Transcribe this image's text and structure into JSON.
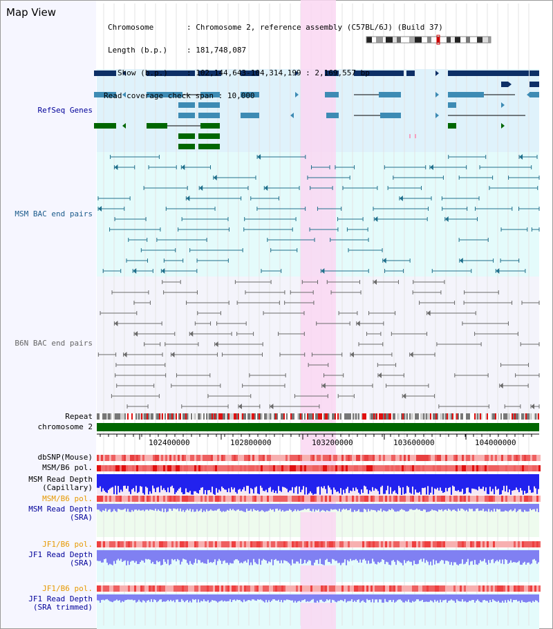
{
  "header": {
    "title": "Map View",
    "chromosome_key": "Chromosome",
    "chromosome_value": ": Chromosome 2, reference assembly (C57BL/6J) (Build 37)",
    "length_key": "Length (b.p.)",
    "length_value": ": 181,748,087",
    "show_key": "Show (b.p.)",
    "show_value": ": 102,144,643-104,314,199 : 2,169,557 bp",
    "span_key": "Read coverage check span",
    "span_value": ": 10,000"
  },
  "tracks": {
    "refseq": "RefSeq Genes",
    "msm_bac": "MSM BAC end pairs",
    "b6n_bac": "B6N BAC end pairs",
    "repeat": "Repeat",
    "chromosome": "chromosome 2",
    "dbsnp": "dbSNP(Mouse)",
    "msm_b6_pol": "MSM/B6 pol.",
    "msm_read_depth_cap_1": "MSM Read Depth",
    "msm_read_depth_cap_2": "(Capillary)",
    "msm_b6_pol_2": "MSM/B6 pol.",
    "msm_read_depth_sra_1": "MSM Read Depth",
    "msm_read_depth_sra_2": "(SRA)",
    "jf1_b6_pol": "JF1/B6 pol.",
    "jf1_read_depth_sra_1": "JF1 Read Depth",
    "jf1_read_depth_sra_2": "(SRA)",
    "jf1_b6_pol_2": "JF1/B6 pol.",
    "jf1_read_depth_trim_1": "JF1 Read Depth",
    "jf1_read_depth_trim_2": "(SRA trimmed)"
  },
  "axis": {
    "ticks": [
      "102400000",
      "102800000",
      "103200000",
      "103600000",
      "104000000"
    ]
  },
  "colors": {
    "refseq_bg": "#dff2fb",
    "msm_bac_bg": "#e4fbfb",
    "b6n_bac_bg": "#f4f4fb",
    "highlight": "#fad7f2",
    "chromosome_bar": "#006600",
    "gene_dark": "#0d2f66",
    "gene_mid": "#3d8bb4",
    "gene_green": "#006600",
    "msm_pair": "#1f6f8b",
    "b6n_pair": "#6a6a6a",
    "snp": "#f29a9a",
    "depth_blue": "#2222ee",
    "depth_light": "#8080f2",
    "label_dark": "#000000",
    "label_blue": "#000099",
    "label_teal": "#1a5a8a",
    "label_orange": "#e69900"
  }
}
